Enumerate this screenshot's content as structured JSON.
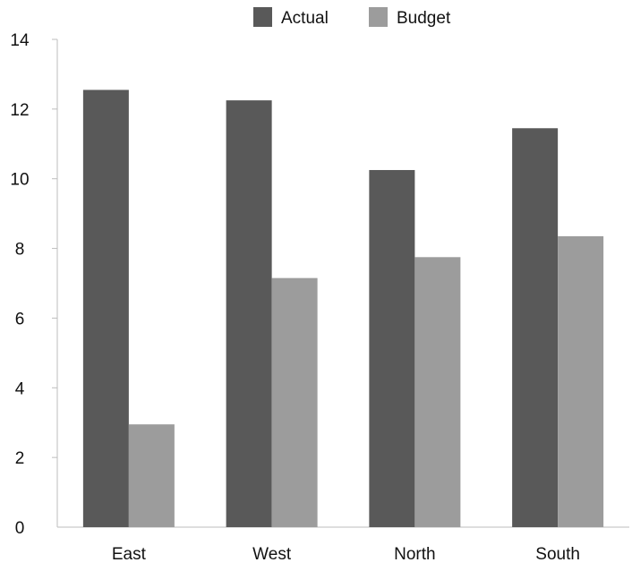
{
  "chart_data": {
    "type": "bar",
    "categories": [
      "East",
      "West",
      "North",
      "South"
    ],
    "series": [
      {
        "name": "Actual",
        "values": [
          12.55,
          12.25,
          10.25,
          11.45
        ],
        "color": "#595959"
      },
      {
        "name": "Budget",
        "values": [
          2.95,
          7.15,
          7.75,
          8.35
        ],
        "color": "#9c9c9c"
      }
    ],
    "yticks": [
      0,
      2,
      4,
      6,
      8,
      10,
      12,
      14
    ],
    "ylim": [
      0,
      14
    ],
    "grid": false,
    "legend_position": "top-center",
    "title": "",
    "xlabel": "",
    "ylabel": ""
  }
}
